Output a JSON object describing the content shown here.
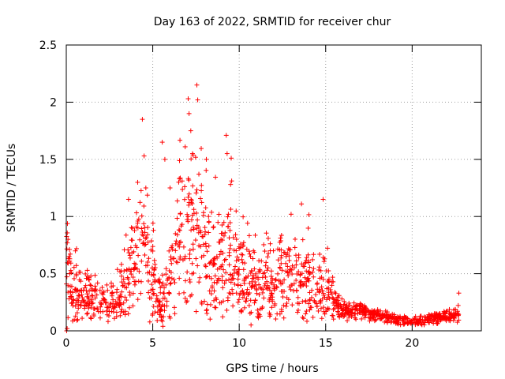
{
  "chart_data": {
    "type": "scatter",
    "title": "Day 163 of 2022, SRMTID for receiver chur",
    "xlabel": "GPS time / hours",
    "ylabel": "SRMTID / TECUs",
    "xlim": [
      0,
      24
    ],
    "ylim": [
      0,
      2.5
    ],
    "x_ticks": [
      0,
      5,
      10,
      15,
      20
    ],
    "x_tick_labels": [
      "0",
      "5",
      "10",
      "15",
      "20"
    ],
    "y_ticks": [
      0,
      0.5,
      1,
      1.5,
      2,
      2.5
    ],
    "y_tick_labels": [
      "0",
      "0.5",
      "1",
      "1.5",
      "2",
      "2.5"
    ],
    "grid": true,
    "marker": "+",
    "series": [
      {
        "name": "SRMTID",
        "color": "#ff0000",
        "profile": [
          {
            "x": 0.0,
            "y": 0.55
          },
          {
            "x": 0.3,
            "y": 0.35
          },
          {
            "x": 1.0,
            "y": 0.28
          },
          {
            "x": 2.0,
            "y": 0.22
          },
          {
            "x": 3.0,
            "y": 0.25
          },
          {
            "x": 3.5,
            "y": 0.45
          },
          {
            "x": 4.0,
            "y": 0.6
          },
          {
            "x": 4.5,
            "y": 0.75
          },
          {
            "x": 5.0,
            "y": 0.5
          },
          {
            "x": 5.5,
            "y": 0.2
          },
          {
            "x": 6.0,
            "y": 0.4
          },
          {
            "x": 6.5,
            "y": 0.7
          },
          {
            "x": 7.0,
            "y": 0.9
          },
          {
            "x": 7.5,
            "y": 0.85
          },
          {
            "x": 8.0,
            "y": 0.65
          },
          {
            "x": 8.5,
            "y": 0.6
          },
          {
            "x": 9.0,
            "y": 0.6
          },
          {
            "x": 9.5,
            "y": 0.7
          },
          {
            "x": 10.0,
            "y": 0.45
          },
          {
            "x": 11.0,
            "y": 0.4
          },
          {
            "x": 12.0,
            "y": 0.4
          },
          {
            "x": 13.0,
            "y": 0.48
          },
          {
            "x": 14.0,
            "y": 0.45
          },
          {
            "x": 14.5,
            "y": 0.3
          },
          {
            "x": 15.0,
            "y": 0.38
          },
          {
            "x": 15.5,
            "y": 0.25
          },
          {
            "x": 16.0,
            "y": 0.18
          },
          {
            "x": 17.0,
            "y": 0.17
          },
          {
            "x": 18.0,
            "y": 0.14
          },
          {
            "x": 19.0,
            "y": 0.1
          },
          {
            "x": 20.0,
            "y": 0.08
          },
          {
            "x": 21.0,
            "y": 0.1
          },
          {
            "x": 22.0,
            "y": 0.12
          },
          {
            "x": 22.7,
            "y": 0.15
          }
        ],
        "peaks": [
          {
            "x": 0.1,
            "y": 0.8
          },
          {
            "x": 3.6,
            "y": 1.15
          },
          {
            "x": 4.4,
            "y": 1.85
          },
          {
            "x": 4.5,
            "y": 1.53
          },
          {
            "x": 4.6,
            "y": 1.25
          },
          {
            "x": 5.55,
            "y": 1.65
          },
          {
            "x": 5.7,
            "y": 1.5
          },
          {
            "x": 6.0,
            "y": 1.25
          },
          {
            "x": 6.5,
            "y": 1.3
          },
          {
            "x": 7.05,
            "y": 2.03
          },
          {
            "x": 7.1,
            "y": 1.9
          },
          {
            "x": 7.2,
            "y": 1.75
          },
          {
            "x": 7.3,
            "y": 1.55
          },
          {
            "x": 7.55,
            "y": 2.15
          },
          {
            "x": 7.6,
            "y": 2.02
          },
          {
            "x": 8.1,
            "y": 1.5
          },
          {
            "x": 9.25,
            "y": 1.71
          },
          {
            "x": 9.3,
            "y": 1.55
          },
          {
            "x": 9.5,
            "y": 1.28
          },
          {
            "x": 13.0,
            "y": 1.02
          },
          {
            "x": 13.6,
            "y": 1.11
          },
          {
            "x": 14.85,
            "y": 1.15
          },
          {
            "x": 22.7,
            "y": 0.33
          }
        ]
      }
    ]
  }
}
